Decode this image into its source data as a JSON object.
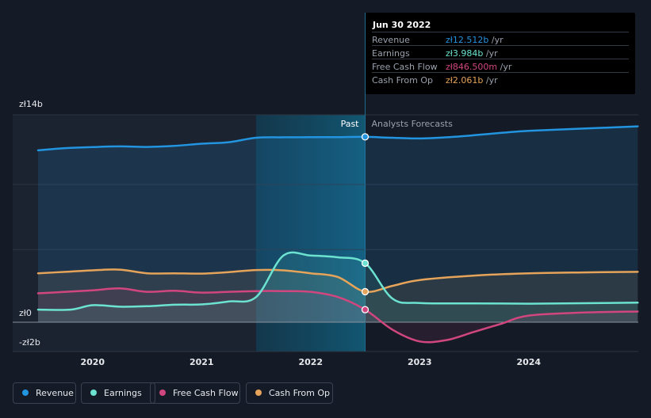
{
  "chart_data": {
    "type": "line",
    "currency_prefix": "zł",
    "y_unit": "b",
    "ylim": [
      -2,
      14
    ],
    "y_tick_labels": [
      "zł14b",
      "zł0",
      "-zł2b"
    ],
    "x_tick_labels": [
      "2020",
      "2021",
      "2022",
      "2023",
      "2024"
    ],
    "x_range": [
      2019.5,
      2025.0
    ],
    "past_label": "Past",
    "forecast_label": "Analysts Forecasts",
    "divider_x": 2022.5,
    "highlight_start_x": 2021.5,
    "grid": true,
    "legend_position": "bottom-left",
    "series": [
      {
        "name": "Revenue",
        "color": "#2394df",
        "area": true,
        "points": [
          [
            2019.5,
            11.6
          ],
          [
            2019.75,
            11.75
          ],
          [
            2020.0,
            11.82
          ],
          [
            2020.25,
            11.87
          ],
          [
            2020.5,
            11.83
          ],
          [
            2020.75,
            11.9
          ],
          [
            2021.0,
            12.05
          ],
          [
            2021.25,
            12.15
          ],
          [
            2021.5,
            12.45
          ],
          [
            2021.75,
            12.48
          ],
          [
            2022.0,
            12.49
          ],
          [
            2022.25,
            12.49
          ],
          [
            2022.5,
            12.512
          ],
          [
            2022.75,
            12.45
          ],
          [
            2023.0,
            12.4
          ],
          [
            2023.25,
            12.48
          ],
          [
            2023.5,
            12.62
          ],
          [
            2023.75,
            12.78
          ],
          [
            2024.0,
            12.92
          ],
          [
            2024.5,
            13.07
          ],
          [
            2025.0,
            13.22
          ]
        ]
      },
      {
        "name": "Earnings",
        "color": "#6ce2d0",
        "area": true,
        "points": [
          [
            2019.5,
            0.85
          ],
          [
            2019.8,
            0.85
          ],
          [
            2020.0,
            1.15
          ],
          [
            2020.25,
            1.05
          ],
          [
            2020.5,
            1.08
          ],
          [
            2020.75,
            1.18
          ],
          [
            2021.0,
            1.2
          ],
          [
            2021.25,
            1.4
          ],
          [
            2021.5,
            1.7
          ],
          [
            2021.75,
            4.5
          ],
          [
            2022.0,
            4.5
          ],
          [
            2022.25,
            4.38
          ],
          [
            2022.5,
            3.984
          ],
          [
            2022.75,
            1.6
          ],
          [
            2023.0,
            1.3
          ],
          [
            2023.5,
            1.27
          ],
          [
            2024.0,
            1.25
          ],
          [
            2024.5,
            1.28
          ],
          [
            2025.0,
            1.32
          ]
        ]
      },
      {
        "name": "Free Cash Flow",
        "color": "#d1467e",
        "area": true,
        "points": [
          [
            2019.5,
            1.95
          ],
          [
            2019.75,
            2.05
          ],
          [
            2020.0,
            2.15
          ],
          [
            2020.25,
            2.28
          ],
          [
            2020.5,
            2.05
          ],
          [
            2020.75,
            2.12
          ],
          [
            2021.0,
            2.0
          ],
          [
            2021.25,
            2.05
          ],
          [
            2021.5,
            2.1
          ],
          [
            2021.75,
            2.1
          ],
          [
            2022.0,
            2.05
          ],
          [
            2022.25,
            1.7
          ],
          [
            2022.5,
            0.8465
          ],
          [
            2022.75,
            -0.5
          ],
          [
            2023.0,
            -1.3
          ],
          [
            2023.25,
            -1.2
          ],
          [
            2023.5,
            -0.65
          ],
          [
            2023.75,
            -0.1
          ],
          [
            2024.0,
            0.45
          ],
          [
            2024.5,
            0.65
          ],
          [
            2025.0,
            0.72
          ]
        ]
      },
      {
        "name": "Cash From Op",
        "color": "#e6a45a",
        "area": true,
        "points": [
          [
            2019.5,
            3.3
          ],
          [
            2019.75,
            3.4
          ],
          [
            2020.0,
            3.5
          ],
          [
            2020.25,
            3.55
          ],
          [
            2020.5,
            3.3
          ],
          [
            2020.75,
            3.3
          ],
          [
            2021.0,
            3.28
          ],
          [
            2021.25,
            3.38
          ],
          [
            2021.5,
            3.52
          ],
          [
            2021.75,
            3.5
          ],
          [
            2022.0,
            3.3
          ],
          [
            2022.25,
            3.05
          ],
          [
            2022.5,
            2.061
          ],
          [
            2022.75,
            2.45
          ],
          [
            2023.0,
            2.85
          ],
          [
            2023.5,
            3.15
          ],
          [
            2024.0,
            3.3
          ],
          [
            2024.5,
            3.36
          ],
          [
            2025.0,
            3.4
          ]
        ]
      }
    ]
  },
  "tooltip": {
    "date": "Jun 30 2022",
    "rows": [
      {
        "label": "Revenue",
        "value": "zł12.512b",
        "unit": "/yr",
        "color": "#2394df"
      },
      {
        "label": "Earnings",
        "value": "zł3.984b",
        "unit": "/yr",
        "color": "#6ce2d0"
      },
      {
        "label": "Free Cash Flow",
        "value": "zł846.500m",
        "unit": "/yr",
        "color": "#d1467e"
      },
      {
        "label": "Cash From Op",
        "value": "zł2.061b",
        "unit": "/yr",
        "color": "#e6a45a"
      }
    ]
  },
  "legend": [
    {
      "label": "Revenue",
      "color": "#2394df"
    },
    {
      "label": "Earnings",
      "color": "#6ce2d0"
    },
    {
      "label": "Free Cash Flow",
      "color": "#d1467e"
    },
    {
      "label": "Cash From Op",
      "color": "#e6a45a"
    }
  ]
}
